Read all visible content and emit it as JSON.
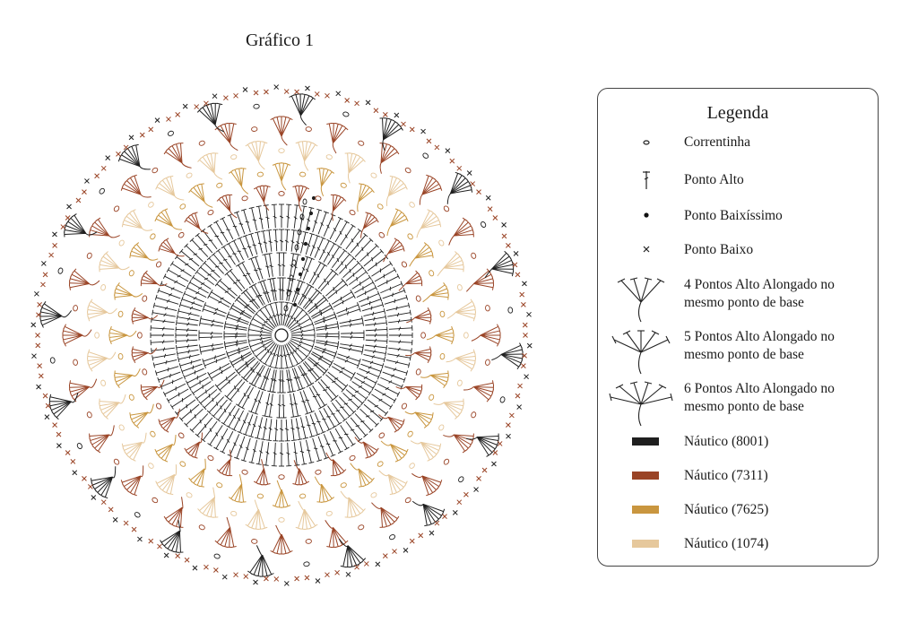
{
  "title": "Gráfico 1",
  "legend": {
    "title": "Legenda",
    "items": [
      {
        "label": "Correntinha",
        "icon": "chain-stitch-icon"
      },
      {
        "label": "Ponto Alto",
        "icon": "double-crochet-icon"
      },
      {
        "label": "Ponto Baixíssimo",
        "icon": "slip-stitch-icon"
      },
      {
        "label": "Ponto Baixo",
        "icon": "single-crochet-icon"
      },
      {
        "label": "4 Pontos Alto Alongado no mesmo ponto de base",
        "icon": "four-stitch-fan-icon"
      },
      {
        "label": "5 Pontos Alto Alongado no mesmo ponto de base",
        "icon": "five-stitch-fan-icon"
      },
      {
        "label": "6 Pontos Alto Alongado no mesmo ponto de base",
        "icon": "six-stitch-fan-icon"
      }
    ],
    "colors": [
      {
        "label": "Náutico (8001)",
        "color": "#1f1f1f"
      },
      {
        "label": "Náutico (7311)",
        "color": "#9a4426"
      },
      {
        "label": "Náutico (7625)",
        "color": "#c9963f"
      },
      {
        "label": "Náutico (1074)",
        "color": "#e6c89c"
      }
    ]
  }
}
